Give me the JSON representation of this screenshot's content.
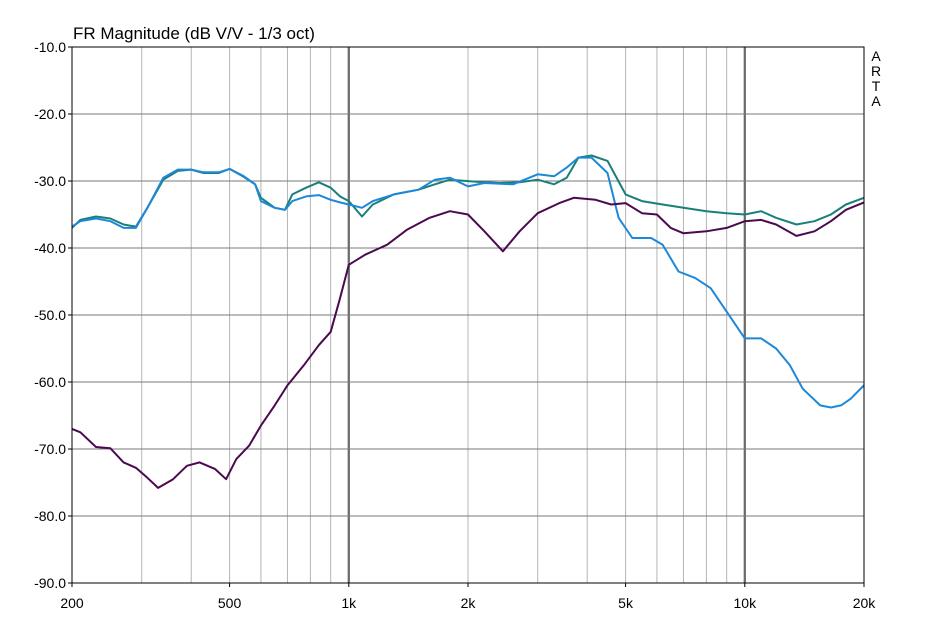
{
  "chart_data": {
    "type": "line",
    "title": "FR Magnitude (dB V/V - 1/3 oct)",
    "side_label": [
      "A",
      "R",
      "T",
      "A"
    ],
    "x_scale": "log",
    "xlim": [
      200,
      20000
    ],
    "ylim": [
      -90,
      -10
    ],
    "x_ticks": [
      {
        "value": 200,
        "label": "200"
      },
      {
        "value": 500,
        "label": "500"
      },
      {
        "value": 1000,
        "label": "1k"
      },
      {
        "value": 2000,
        "label": "2k"
      },
      {
        "value": 5000,
        "label": "5k"
      },
      {
        "value": 10000,
        "label": "10k"
      },
      {
        "value": 20000,
        "label": "20k"
      }
    ],
    "y_ticks": [
      {
        "value": -10,
        "label": "-10.0"
      },
      {
        "value": -20,
        "label": "-20.0"
      },
      {
        "value": -30,
        "label": "-30.0"
      },
      {
        "value": -40,
        "label": "-40.0"
      },
      {
        "value": -50,
        "label": "-50.0"
      },
      {
        "value": -60,
        "label": "-60.0"
      },
      {
        "value": -70,
        "label": "-70.0"
      },
      {
        "value": -80,
        "label": "-80.0"
      },
      {
        "value": -90,
        "label": "-90.0"
      }
    ],
    "grid": true,
    "series": [
      {
        "color": "#1a7f7a",
        "points": [
          [
            200,
            -37
          ],
          [
            210,
            -35.8
          ],
          [
            230,
            -35.3
          ],
          [
            250,
            -35.6
          ],
          [
            270,
            -36.5
          ],
          [
            290,
            -36.8
          ],
          [
            310,
            -34
          ],
          [
            340,
            -29.8
          ],
          [
            370,
            -28.5
          ],
          [
            400,
            -28.3
          ],
          [
            430,
            -28.8
          ],
          [
            470,
            -28.8
          ],
          [
            500,
            -28.2
          ],
          [
            540,
            -29.3
          ],
          [
            580,
            -30.5
          ],
          [
            600,
            -32.5
          ],
          [
            650,
            -34
          ],
          [
            690,
            -34.3
          ],
          [
            720,
            -32
          ],
          [
            780,
            -31
          ],
          [
            840,
            -30.2
          ],
          [
            900,
            -31
          ],
          [
            950,
            -32.3
          ],
          [
            1000,
            -33
          ],
          [
            1080,
            -35.3
          ],
          [
            1150,
            -33.5
          ],
          [
            1300,
            -32
          ],
          [
            1500,
            -31.3
          ],
          [
            1650,
            -30.5
          ],
          [
            1800,
            -29.8
          ],
          [
            2100,
            -30.1
          ],
          [
            2400,
            -30.3
          ],
          [
            2700,
            -30.2
          ],
          [
            3000,
            -29.8
          ],
          [
            3300,
            -30.5
          ],
          [
            3550,
            -29.5
          ],
          [
            3800,
            -26.5
          ],
          [
            4100,
            -26.2
          ],
          [
            4500,
            -27
          ],
          [
            5000,
            -32
          ],
          [
            5500,
            -33
          ],
          [
            6200,
            -33.5
          ],
          [
            7000,
            -34
          ],
          [
            8000,
            -34.5
          ],
          [
            9000,
            -34.8
          ],
          [
            10000,
            -35
          ],
          [
            11000,
            -34.5
          ],
          [
            12000,
            -35.5
          ],
          [
            13500,
            -36.5
          ],
          [
            15000,
            -36
          ],
          [
            16500,
            -35
          ],
          [
            18000,
            -33.5
          ],
          [
            20000,
            -32.5
          ]
        ]
      },
      {
        "color": "#1e88d8",
        "points": [
          [
            200,
            -36.8
          ],
          [
            210,
            -36
          ],
          [
            230,
            -35.6
          ],
          [
            250,
            -36
          ],
          [
            270,
            -37
          ],
          [
            290,
            -37
          ],
          [
            310,
            -34
          ],
          [
            340,
            -29.5
          ],
          [
            370,
            -28.3
          ],
          [
            400,
            -28.3
          ],
          [
            430,
            -28.7
          ],
          [
            470,
            -28.7
          ],
          [
            500,
            -28.2
          ],
          [
            540,
            -29.2
          ],
          [
            580,
            -30.5
          ],
          [
            600,
            -33
          ],
          [
            650,
            -34
          ],
          [
            690,
            -34.3
          ],
          [
            720,
            -33
          ],
          [
            780,
            -32.3
          ],
          [
            840,
            -32.1
          ],
          [
            900,
            -32.8
          ],
          [
            950,
            -33.2
          ],
          [
            1000,
            -33.5
          ],
          [
            1080,
            -34
          ],
          [
            1150,
            -33
          ],
          [
            1300,
            -32
          ],
          [
            1500,
            -31.3
          ],
          [
            1650,
            -29.8
          ],
          [
            1800,
            -29.5
          ],
          [
            2000,
            -30.8
          ],
          [
            2200,
            -30.3
          ],
          [
            2600,
            -30.5
          ],
          [
            3000,
            -29
          ],
          [
            3300,
            -29.3
          ],
          [
            3550,
            -28
          ],
          [
            3800,
            -26.5
          ],
          [
            4100,
            -26.5
          ],
          [
            4500,
            -28.8
          ],
          [
            4800,
            -35.5
          ],
          [
            5200,
            -38.5
          ],
          [
            5800,
            -38.5
          ],
          [
            6200,
            -39.5
          ],
          [
            6800,
            -43.5
          ],
          [
            7500,
            -44.5
          ],
          [
            8200,
            -46
          ],
          [
            9000,
            -49.5
          ],
          [
            10000,
            -53.5
          ],
          [
            11000,
            -53.5
          ],
          [
            12000,
            -55
          ],
          [
            13000,
            -57.5
          ],
          [
            14000,
            -61
          ],
          [
            15500,
            -63.5
          ],
          [
            16500,
            -63.8
          ],
          [
            17500,
            -63.5
          ],
          [
            18500,
            -62.5
          ],
          [
            20000,
            -60.5
          ]
        ]
      },
      {
        "color": "#4b0a50",
        "points": [
          [
            200,
            -67
          ],
          [
            210,
            -67.5
          ],
          [
            230,
            -69.7
          ],
          [
            250,
            -69.9
          ],
          [
            270,
            -72
          ],
          [
            290,
            -72.8
          ],
          [
            310,
            -74.3
          ],
          [
            330,
            -75.8
          ],
          [
            360,
            -74.5
          ],
          [
            390,
            -72.5
          ],
          [
            420,
            -72
          ],
          [
            460,
            -73
          ],
          [
            490,
            -74.5
          ],
          [
            520,
            -71.5
          ],
          [
            560,
            -69.5
          ],
          [
            600,
            -66.5
          ],
          [
            650,
            -63.5
          ],
          [
            700,
            -60.5
          ],
          [
            770,
            -57.5
          ],
          [
            840,
            -54.5
          ],
          [
            900,
            -52.5
          ],
          [
            950,
            -47.5
          ],
          [
            1000,
            -42.5
          ],
          [
            1100,
            -41
          ],
          [
            1250,
            -39.5
          ],
          [
            1400,
            -37.3
          ],
          [
            1600,
            -35.5
          ],
          [
            1800,
            -34.5
          ],
          [
            2000,
            -35
          ],
          [
            2200,
            -37.5
          ],
          [
            2450,
            -40.5
          ],
          [
            2700,
            -37.5
          ],
          [
            3000,
            -34.8
          ],
          [
            3400,
            -33.3
          ],
          [
            3700,
            -32.5
          ],
          [
            4200,
            -32.8
          ],
          [
            4600,
            -33.5
          ],
          [
            5000,
            -33.3
          ],
          [
            5500,
            -34.8
          ],
          [
            6000,
            -35
          ],
          [
            6500,
            -37
          ],
          [
            7000,
            -37.8
          ],
          [
            8000,
            -37.5
          ],
          [
            9000,
            -37
          ],
          [
            10000,
            -36
          ],
          [
            11000,
            -35.8
          ],
          [
            12000,
            -36.5
          ],
          [
            13500,
            -38.2
          ],
          [
            15000,
            -37.5
          ],
          [
            16500,
            -36
          ],
          [
            18000,
            -34.3
          ],
          [
            20000,
            -33.2
          ]
        ]
      }
    ]
  }
}
